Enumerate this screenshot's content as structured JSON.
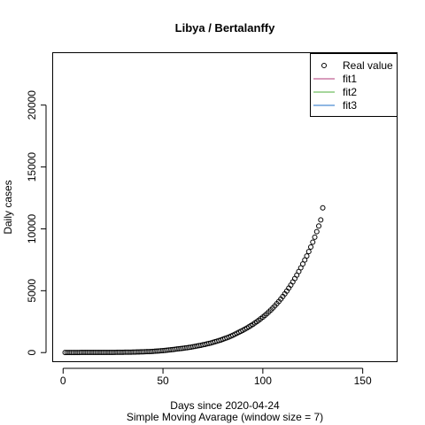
{
  "chart_data": {
    "type": "scatter",
    "title": "Libya / Bertalanffy",
    "xlabel": "Days since 2020-04-24",
    "subtitle": "Simple Moving Avarage (window size = 7)",
    "ylabel": "Daily cases",
    "xlim": [
      -5,
      167
    ],
    "ylim": [
      -700,
      24200
    ],
    "xticks": [
      0,
      50,
      100,
      150
    ],
    "yticks": [
      0,
      5000,
      10000,
      15000,
      20000
    ],
    "grid": false,
    "legend_position": "top-right",
    "series": [
      {
        "name": "Real value",
        "style": "points",
        "color": "#000000",
        "x": [
          1,
          2,
          3,
          4,
          5,
          6,
          7,
          8,
          9,
          10,
          11,
          12,
          13,
          14,
          15,
          16,
          17,
          18,
          19,
          20,
          21,
          22,
          23,
          24,
          25,
          26,
          27,
          28,
          29,
          30,
          31,
          32,
          33,
          34,
          35,
          36,
          37,
          38,
          39,
          40,
          41,
          42,
          43,
          44,
          45,
          46,
          47,
          48,
          49,
          50,
          51,
          52,
          53,
          54,
          55,
          56,
          57,
          58,
          59,
          60,
          61,
          62,
          63,
          64,
          65,
          66,
          67,
          68,
          69,
          70,
          71,
          72,
          73,
          74,
          75,
          76,
          77,
          78,
          79,
          80,
          81,
          82,
          83,
          84,
          85,
          86,
          87,
          88,
          89,
          90,
          91,
          92,
          93,
          94,
          95,
          96,
          97,
          98,
          99,
          100,
          101,
          102,
          103,
          104,
          105,
          106,
          107,
          108,
          109,
          110,
          111,
          112,
          113,
          114,
          115,
          116,
          117,
          118,
          119,
          120,
          121,
          122,
          123,
          124,
          125,
          126,
          127,
          128,
          129,
          130
        ],
        "y": [
          10,
          10,
          10,
          10,
          10,
          10,
          10,
          10,
          11,
          11,
          11,
          11,
          12,
          12,
          12,
          13,
          13,
          13,
          14,
          14,
          15,
          16,
          17,
          18,
          19,
          20,
          22,
          23,
          25,
          27,
          29,
          31,
          34,
          37,
          40,
          44,
          48,
          53,
          58,
          63,
          68,
          75,
          80,
          90,
          100,
          110,
          120,
          130,
          150,
          160,
          180,
          190,
          210,
          230,
          250,
          270,
          290,
          310,
          330,
          350,
          370,
          390,
          420,
          440,
          470,
          500,
          530,
          560,
          590,
          630,
          660,
          700,
          740,
          780,
          830,
          870,
          920,
          970,
          1020,
          1080,
          1140,
          1200,
          1260,
          1330,
          1400,
          1480,
          1560,
          1640,
          1720,
          1800,
          1890,
          1980,
          2080,
          2180,
          2280,
          2390,
          2500,
          2620,
          2740,
          2870,
          3000,
          3140,
          3290,
          3440,
          3600,
          3770,
          3950,
          4130,
          4330,
          4530,
          4750,
          4970,
          5210,
          5450,
          5710,
          5980,
          6260,
          6550,
          6850,
          7160,
          7480,
          7810,
          8160,
          8530,
          8920,
          9330,
          9770,
          10230,
          10720,
          11700
        ]
      },
      {
        "name": "fit1",
        "style": "line",
        "color": "#b03a78",
        "x": [],
        "y": []
      },
      {
        "name": "fit2",
        "style": "line",
        "color": "#4cae38",
        "x": [],
        "y": []
      },
      {
        "name": "fit3",
        "style": "line",
        "color": "#1f6fc7",
        "x": [],
        "y": []
      }
    ]
  }
}
